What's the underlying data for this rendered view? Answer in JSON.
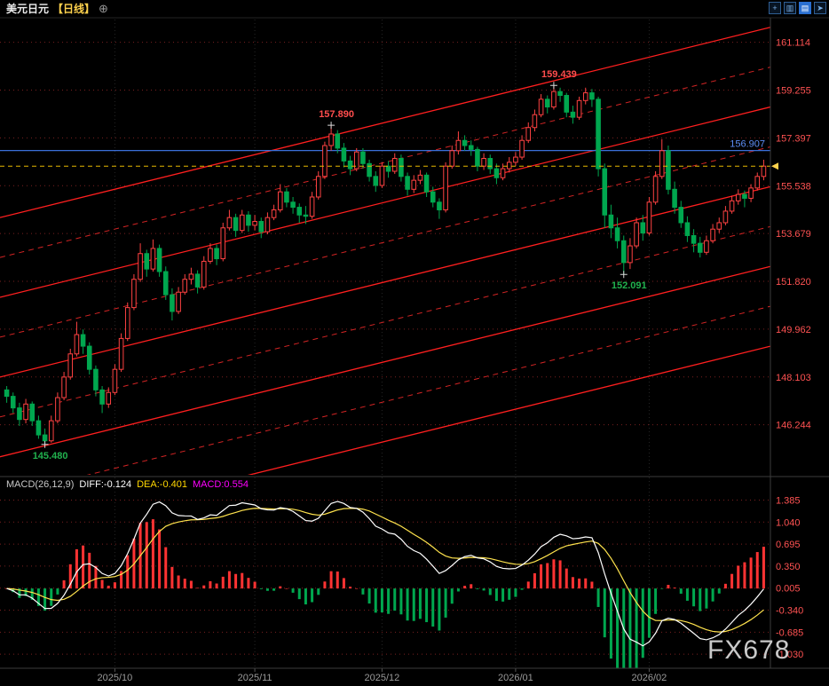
{
  "header": {
    "title": "美元日元",
    "period_tag": "【日线】",
    "plus_icon_glyph": "⊕",
    "toolbar": [
      {
        "name": "add-indicator",
        "glyph": "+"
      },
      {
        "name": "chart-type",
        "glyph": "▥"
      },
      {
        "name": "chart-settings",
        "glyph": "▤"
      },
      {
        "name": "expand",
        "glyph": "➤"
      }
    ]
  },
  "watermark": "FX678",
  "colors": {
    "up": "#ff4242",
    "down": "#00a74f",
    "axis_text": "#ff5252",
    "blue_line": "#3a6fd8",
    "blue_text": "#5d8ef5",
    "current_line": "#e6b800",
    "marker": "#ffd24d",
    "diff_line": "#ffffff",
    "dea_line": "#ffe34d",
    "hist_pos": "#ff3333",
    "hist_neg": "#00a74f",
    "date_text": "#9a9a9a",
    "channel": "#ff1f1f",
    "channel_dashed": "#d22424"
  },
  "chart_data": {
    "type": "candlestick+macd",
    "title": "美元日元 日线",
    "price_range": [
      144.3,
      162.0
    ],
    "price_axis_labels": [
      161.114,
      159.255,
      157.397,
      155.538,
      153.679,
      151.82,
      149.962,
      148.103,
      146.244
    ],
    "x_axis_labels": [
      {
        "label": "2025/10",
        "index": 17
      },
      {
        "label": "2025/11",
        "index": 39
      },
      {
        "label": "2025/12",
        "index": 59
      },
      {
        "label": "2026/01",
        "index": 80
      },
      {
        "label": "2026/02",
        "index": 101
      }
    ],
    "current_price": 156.3,
    "blue_line": {
      "price": 156.907,
      "label": "156.907"
    },
    "annotations": [
      {
        "type": "low",
        "index": 6,
        "price": 145.48,
        "label": "145.480"
      },
      {
        "type": "high",
        "index": 51,
        "price": 157.89,
        "label": "157.890"
      },
      {
        "type": "high",
        "index": 86,
        "price": 159.439,
        "label": "159.439"
      },
      {
        "type": "low",
        "index": 97,
        "price": 152.091,
        "label": "152.091"
      }
    ],
    "channel_lines": {
      "solid": [
        [
          154.3,
          161.7
        ],
        [
          151.2,
          158.6
        ],
        [
          148.1,
          155.5
        ],
        [
          145.0,
          152.4
        ],
        [
          141.9,
          149.3
        ]
      ],
      "dashed": [
        [
          152.75,
          160.15
        ],
        [
          149.65,
          157.05
        ],
        [
          146.55,
          153.95
        ],
        [
          143.45,
          150.85
        ]
      ]
    },
    "candles": [
      [
        147.6,
        147.75,
        147.1,
        147.35
      ],
      [
        147.35,
        147.5,
        146.7,
        146.9
      ],
      [
        146.9,
        147.1,
        146.2,
        146.45
      ],
      [
        146.45,
        147.25,
        146.3,
        147.05
      ],
      [
        147.05,
        147.15,
        146.2,
        146.4
      ],
      [
        146.4,
        146.6,
        145.7,
        145.85
      ],
      [
        145.85,
        146.1,
        145.48,
        145.62
      ],
      [
        145.62,
        146.6,
        145.55,
        146.4
      ],
      [
        146.4,
        147.5,
        146.3,
        147.3
      ],
      [
        147.3,
        148.3,
        147.2,
        148.1
      ],
      [
        148.1,
        149.2,
        148.0,
        149.0
      ],
      [
        149.0,
        150.25,
        148.9,
        149.75
      ],
      [
        149.75,
        149.95,
        149.0,
        149.3
      ],
      [
        149.3,
        149.45,
        148.2,
        148.4
      ],
      [
        148.4,
        148.55,
        147.35,
        147.6
      ],
      [
        147.6,
        147.75,
        146.7,
        147.05
      ],
      [
        147.05,
        147.7,
        146.9,
        147.5
      ],
      [
        147.5,
        148.6,
        147.4,
        148.4
      ],
      [
        148.4,
        149.8,
        148.3,
        149.6
      ],
      [
        149.6,
        151.0,
        149.5,
        150.8
      ],
      [
        150.8,
        152.1,
        150.7,
        151.9
      ],
      [
        151.9,
        153.3,
        151.8,
        152.9
      ],
      [
        152.9,
        153.05,
        152.0,
        152.3
      ],
      [
        152.3,
        153.45,
        152.2,
        153.1
      ],
      [
        153.1,
        153.25,
        152.0,
        152.2
      ],
      [
        152.2,
        152.4,
        151.1,
        151.3
      ],
      [
        151.3,
        151.55,
        150.3,
        150.65
      ],
      [
        150.65,
        151.6,
        150.55,
        151.4
      ],
      [
        151.4,
        152.1,
        151.3,
        151.9
      ],
      [
        151.9,
        152.35,
        151.7,
        152.1
      ],
      [
        152.1,
        152.25,
        151.35,
        151.6
      ],
      [
        151.6,
        152.8,
        151.5,
        152.6
      ],
      [
        152.6,
        153.3,
        152.5,
        153.1
      ],
      [
        153.1,
        153.25,
        152.45,
        152.7
      ],
      [
        152.7,
        154.1,
        152.6,
        153.9
      ],
      [
        153.9,
        154.6,
        153.8,
        154.3
      ],
      [
        154.3,
        154.45,
        153.55,
        153.8
      ],
      [
        153.8,
        154.6,
        153.7,
        154.4
      ],
      [
        154.4,
        154.55,
        153.75,
        154.0
      ],
      [
        154.0,
        154.4,
        153.8,
        154.15
      ],
      [
        154.15,
        154.3,
        153.5,
        153.75
      ],
      [
        153.75,
        154.5,
        153.65,
        154.3
      ],
      [
        154.3,
        154.8,
        154.2,
        154.6
      ],
      [
        154.6,
        155.6,
        154.5,
        155.3
      ],
      [
        155.3,
        155.45,
        154.7,
        154.9
      ],
      [
        154.9,
        155.1,
        154.45,
        154.7
      ],
      [
        154.7,
        154.85,
        154.1,
        154.4
      ],
      [
        154.4,
        154.75,
        154.05,
        154.35
      ],
      [
        154.35,
        155.3,
        154.25,
        155.1
      ],
      [
        155.1,
        156.1,
        155.0,
        155.9
      ],
      [
        155.9,
        157.25,
        155.8,
        157.1
      ],
      [
        157.1,
        157.89,
        156.9,
        157.55
      ],
      [
        157.55,
        157.7,
        156.8,
        157.0
      ],
      [
        157.0,
        157.2,
        156.25,
        156.5
      ],
      [
        156.5,
        156.7,
        155.95,
        156.2
      ],
      [
        156.2,
        157.0,
        156.1,
        156.85
      ],
      [
        156.85,
        157.0,
        156.2,
        156.4
      ],
      [
        156.4,
        156.55,
        155.7,
        155.9
      ],
      [
        155.9,
        156.1,
        155.3,
        155.55
      ],
      [
        155.55,
        156.45,
        155.45,
        156.3
      ],
      [
        156.3,
        156.5,
        155.85,
        156.1
      ],
      [
        156.1,
        156.8,
        156.0,
        156.6
      ],
      [
        156.6,
        156.75,
        155.7,
        155.9
      ],
      [
        155.9,
        156.05,
        155.15,
        155.4
      ],
      [
        155.4,
        155.95,
        155.25,
        155.75
      ],
      [
        155.75,
        156.15,
        155.6,
        155.95
      ],
      [
        155.95,
        156.05,
        155.1,
        155.3
      ],
      [
        155.3,
        155.5,
        154.7,
        154.9
      ],
      [
        154.9,
        155.05,
        154.25,
        154.6
      ],
      [
        154.6,
        156.45,
        154.5,
        156.3
      ],
      [
        156.3,
        157.1,
        156.2,
        156.9
      ],
      [
        156.9,
        157.65,
        156.75,
        157.3
      ],
      [
        157.3,
        157.5,
        156.9,
        157.1
      ],
      [
        157.1,
        157.3,
        156.7,
        156.95
      ],
      [
        156.95,
        157.05,
        156.1,
        156.3
      ],
      [
        156.3,
        156.8,
        156.15,
        156.6
      ],
      [
        156.6,
        156.75,
        156.0,
        156.2
      ],
      [
        156.2,
        156.4,
        155.6,
        155.85
      ],
      [
        155.85,
        156.4,
        155.75,
        156.2
      ],
      [
        156.2,
        156.65,
        156.05,
        156.45
      ],
      [
        156.45,
        156.85,
        156.3,
        156.65
      ],
      [
        156.65,
        157.5,
        156.55,
        157.3
      ],
      [
        157.3,
        158.0,
        157.2,
        157.8
      ],
      [
        157.8,
        158.5,
        157.65,
        158.3
      ],
      [
        158.3,
        159.1,
        158.2,
        158.9
      ],
      [
        158.9,
        159.05,
        158.35,
        158.6
      ],
      [
        158.6,
        159.439,
        158.5,
        159.2
      ],
      [
        159.2,
        159.35,
        158.8,
        159.05
      ],
      [
        159.05,
        159.15,
        158.2,
        158.4
      ],
      [
        158.4,
        158.65,
        157.95,
        158.2
      ],
      [
        158.2,
        159.0,
        158.1,
        158.85
      ],
      [
        158.85,
        159.35,
        158.7,
        159.15
      ],
      [
        159.15,
        159.3,
        158.6,
        158.9
      ],
      [
        158.9,
        159.0,
        155.9,
        156.2
      ],
      [
        156.2,
        156.4,
        153.9,
        154.4
      ],
      [
        154.4,
        154.8,
        153.5,
        153.9
      ],
      [
        153.9,
        154.3,
        153.1,
        153.4
      ],
      [
        153.4,
        153.6,
        152.091,
        152.55
      ],
      [
        152.55,
        153.5,
        152.3,
        153.2
      ],
      [
        153.2,
        154.3,
        153.1,
        154.1
      ],
      [
        154.1,
        154.4,
        153.4,
        153.7
      ],
      [
        153.7,
        155.1,
        153.6,
        154.9
      ],
      [
        154.9,
        156.1,
        154.8,
        155.9
      ],
      [
        155.9,
        157.35,
        155.8,
        156.9
      ],
      [
        156.9,
        157.1,
        155.2,
        155.4
      ],
      [
        155.4,
        155.7,
        154.45,
        154.7
      ],
      [
        154.7,
        154.95,
        153.9,
        154.1
      ],
      [
        154.1,
        154.35,
        153.35,
        153.6
      ],
      [
        153.6,
        153.85,
        152.95,
        153.3
      ],
      [
        153.3,
        153.55,
        152.75,
        152.95
      ],
      [
        152.95,
        153.6,
        152.85,
        153.4
      ],
      [
        153.4,
        154.05,
        153.3,
        153.85
      ],
      [
        153.85,
        154.3,
        153.7,
        154.1
      ],
      [
        154.1,
        154.75,
        154.0,
        154.55
      ],
      [
        154.55,
        155.15,
        154.45,
        154.95
      ],
      [
        154.95,
        155.4,
        154.8,
        155.2
      ],
      [
        155.2,
        155.35,
        154.7,
        155.05
      ],
      [
        155.05,
        155.6,
        154.9,
        155.45
      ],
      [
        155.45,
        156.05,
        155.35,
        155.9
      ],
      [
        155.9,
        156.55,
        155.75,
        156.3
      ]
    ],
    "macd": {
      "title": "MACD(26,12,9)",
      "diff_label": "DIFF:-0.124",
      "dea_label": "DEA:-0.401",
      "macd_label": "MACD:0.554",
      "params": [
        26,
        12,
        9
      ],
      "range": [
        1.6,
        -1.25
      ],
      "axis_labels": [
        1.385,
        1.04,
        0.695,
        0.35,
        0.005,
        -0.34,
        -0.685,
        -1.03
      ]
    }
  }
}
